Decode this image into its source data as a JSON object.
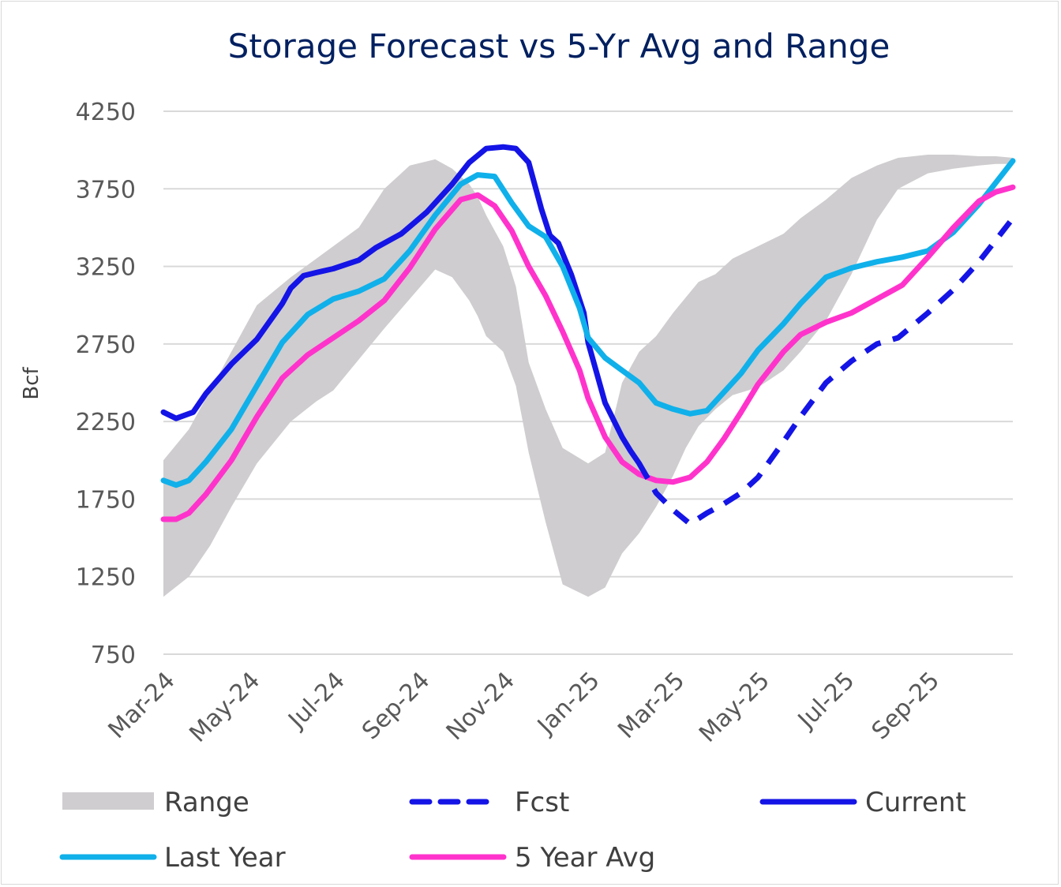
{
  "chart_data": {
    "type": "line",
    "title": "Storage Forecast vs 5-Yr Avg and Range",
    "xlabel": "",
    "ylabel": "Bcf",
    "ylim": [
      750,
      4250
    ],
    "yticks": [
      750,
      1250,
      1750,
      2250,
      2750,
      3250,
      3750,
      4250
    ],
    "x_index_range": [
      0,
      20
    ],
    "xtick_labels": [
      "Mar-24",
      "May-24",
      "Jul-24",
      "Sep-24",
      "Nov-24",
      "Jan-25",
      "Mar-25",
      "May-25",
      "Jul-25",
      "Sep-25"
    ],
    "xtick_index": [
      0,
      2,
      4,
      6,
      8,
      10,
      12,
      14,
      16,
      18
    ],
    "grid": true,
    "legend_position": "bottom",
    "colors": {
      "range": "#cfcdcf",
      "fcst": "#1414e6",
      "current": "#1414e6",
      "last_year": "#10b0ea",
      "avg5": "#ff33cc",
      "title": "#002060",
      "grid": "#d9d9d9"
    },
    "legend": [
      "Range",
      "Fcst",
      "Current",
      "Last Year",
      "5 Year Avg"
    ],
    "series": [
      {
        "name": "Range",
        "type": "band",
        "x": [
          0,
          0.6,
          1.1,
          1.6,
          2.2,
          3.0,
          3.6,
          4.0,
          4.6,
          5.2,
          5.8,
          6.4,
          6.8,
          7.2,
          7.4,
          7.6,
          8.0,
          8.3,
          8.6,
          9.0,
          9.4,
          10.0,
          10.4,
          10.8,
          11.2,
          11.6,
          12.0,
          12.3,
          12.6,
          13.0,
          13.4,
          14.0,
          14.6,
          15.0,
          15.6,
          16.2,
          16.8,
          17.3,
          18.0,
          18.6,
          19.2,
          19.6,
          20.0
        ],
        "low": [
          1120,
          1250,
          1450,
          1700,
          1980,
          2250,
          2380,
          2450,
          2650,
          2850,
          3040,
          3230,
          3180,
          3030,
          2930,
          2800,
          2700,
          2480,
          2050,
          1600,
          1200,
          1120,
          1180,
          1400,
          1530,
          1700,
          1900,
          2080,
          2220,
          2330,
          2420,
          2470,
          2580,
          2700,
          2900,
          3200,
          3550,
          3750,
          3850,
          3880,
          3900,
          3910,
          3910
        ],
        "high": [
          2000,
          2200,
          2450,
          2700,
          3000,
          3180,
          3300,
          3380,
          3500,
          3750,
          3900,
          3940,
          3880,
          3780,
          3700,
          3580,
          3380,
          3120,
          2630,
          2330,
          2080,
          1980,
          2050,
          2500,
          2700,
          2800,
          2950,
          3050,
          3150,
          3200,
          3300,
          3380,
          3460,
          3560,
          3680,
          3820,
          3900,
          3950,
          3970,
          3970,
          3960,
          3960,
          3950
        ]
      },
      {
        "name": "Current",
        "x": [
          0,
          0.3,
          0.7,
          1.0,
          1.6,
          2.2,
          2.8,
          3.0,
          3.3,
          3.6,
          4.0,
          4.6,
          5.0,
          5.6,
          6.2,
          6.8,
          7.2,
          7.6,
          8.0,
          8.3,
          8.6,
          8.9,
          9.1,
          9.3,
          9.6,
          9.9,
          10.0,
          10.4,
          10.8,
          11.0,
          11.2
        ],
        "values": [
          2310,
          2270,
          2310,
          2430,
          2620,
          2780,
          3010,
          3110,
          3190,
          3210,
          3235,
          3290,
          3370,
          3460,
          3600,
          3780,
          3920,
          4010,
          4020,
          4010,
          3920,
          3620,
          3450,
          3400,
          3200,
          2950,
          2760,
          2370,
          2150,
          2060,
          1980
        ]
      },
      {
        "name": "Fcst",
        "dashed": true,
        "x": [
          11.2,
          11.6,
          12.0,
          12.4,
          12.8,
          13.2,
          13.6,
          14.0,
          14.6,
          15.0,
          15.6,
          16.2,
          16.8,
          17.3,
          18.0,
          18.6,
          19.2,
          19.6,
          20.0
        ],
        "values": [
          1980,
          1790,
          1680,
          1590,
          1660,
          1720,
          1790,
          1890,
          2120,
          2280,
          2500,
          2640,
          2750,
          2790,
          2950,
          3100,
          3280,
          3420,
          3560
        ]
      },
      {
        "name": "Last Year",
        "x": [
          0,
          0.3,
          0.6,
          1.0,
          1.6,
          2.2,
          2.8,
          3.4,
          4.0,
          4.6,
          5.2,
          5.8,
          6.4,
          7.0,
          7.4,
          7.8,
          8.2,
          8.6,
          9.0,
          9.4,
          9.8,
          10.0,
          10.4,
          10.8,
          11.2,
          11.6,
          12.0,
          12.4,
          12.8,
          13.2,
          13.6,
          14.0,
          14.6,
          15.0,
          15.6,
          16.2,
          16.8,
          17.4,
          18.0,
          18.6,
          19.2,
          19.6,
          20.0
        ],
        "values": [
          1870,
          1840,
          1870,
          1990,
          2200,
          2480,
          2760,
          2940,
          3040,
          3090,
          3170,
          3350,
          3580,
          3780,
          3840,
          3830,
          3660,
          3510,
          3440,
          3250,
          2980,
          2790,
          2660,
          2580,
          2500,
          2370,
          2330,
          2300,
          2320,
          2440,
          2560,
          2710,
          2880,
          3010,
          3180,
          3240,
          3280,
          3310,
          3350,
          3470,
          3650,
          3790,
          3930
        ]
      },
      {
        "name": "5 Year Avg",
        "x": [
          0,
          0.3,
          0.6,
          1.0,
          1.6,
          2.2,
          2.8,
          3.4,
          4.0,
          4.6,
          5.2,
          5.8,
          6.4,
          7.0,
          7.4,
          7.8,
          8.2,
          8.6,
          9.0,
          9.4,
          9.8,
          10.0,
          10.4,
          10.8,
          11.2,
          11.6,
          12.0,
          12.4,
          12.8,
          13.2,
          13.6,
          14.0,
          14.6,
          15.0,
          15.6,
          16.2,
          16.8,
          17.4,
          18.0,
          18.6,
          19.2,
          19.6,
          20.0
        ],
        "values": [
          1620,
          1620,
          1660,
          1780,
          2000,
          2280,
          2530,
          2680,
          2790,
          2900,
          3030,
          3240,
          3490,
          3680,
          3710,
          3640,
          3480,
          3250,
          3060,
          2830,
          2580,
          2400,
          2150,
          1990,
          1910,
          1870,
          1860,
          1890,
          1990,
          2140,
          2310,
          2490,
          2700,
          2810,
          2890,
          2950,
          3040,
          3130,
          3310,
          3500,
          3670,
          3730,
          3760
        ]
      }
    ]
  }
}
